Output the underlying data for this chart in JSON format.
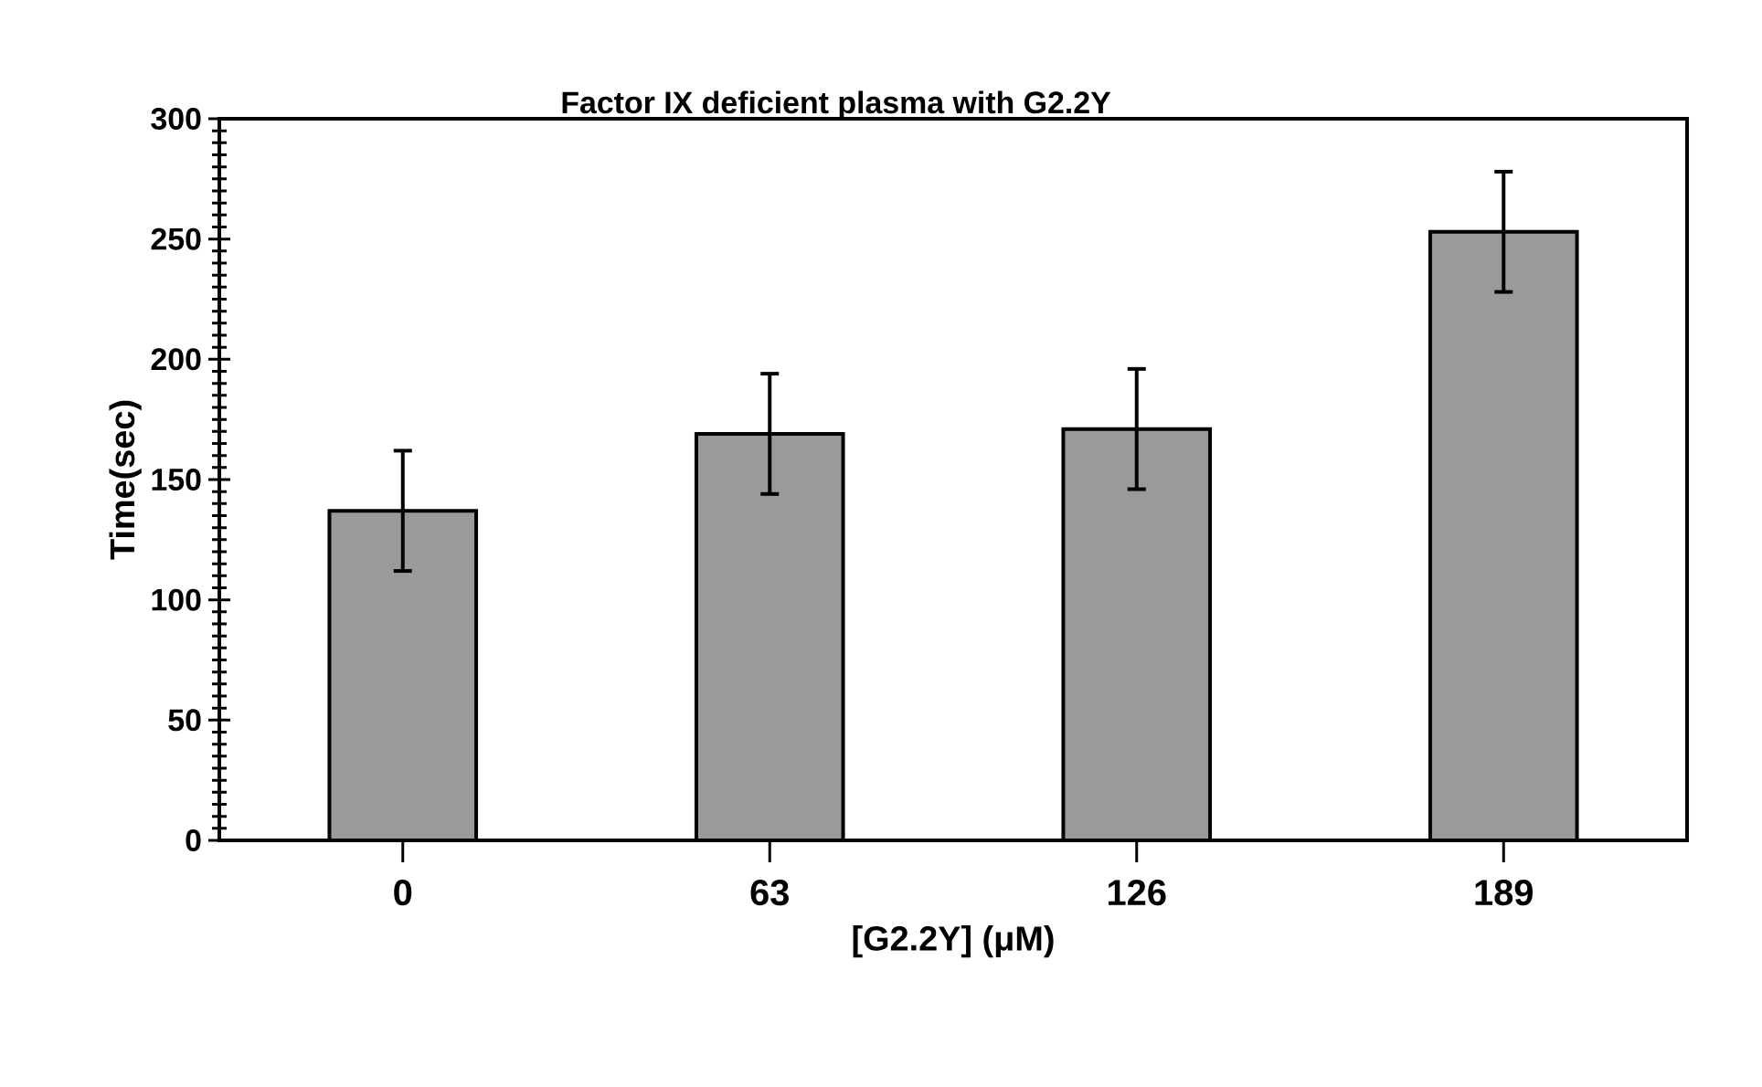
{
  "chart_data": {
    "type": "bar",
    "title": "Factor IX deficient plasma with G2.2Y",
    "xlabel": "[G2.2Y] (μM)",
    "ylabel": "Time(sec)",
    "categories": [
      "0",
      "63",
      "126",
      "189"
    ],
    "values": [
      137,
      169,
      171,
      253
    ],
    "errors": [
      25,
      25,
      25,
      25
    ],
    "color": "#9a9a9a",
    "ylim": [
      0,
      300
    ],
    "yticks": [
      0,
      50,
      100,
      150,
      200,
      250,
      300
    ],
    "grid": false
  }
}
